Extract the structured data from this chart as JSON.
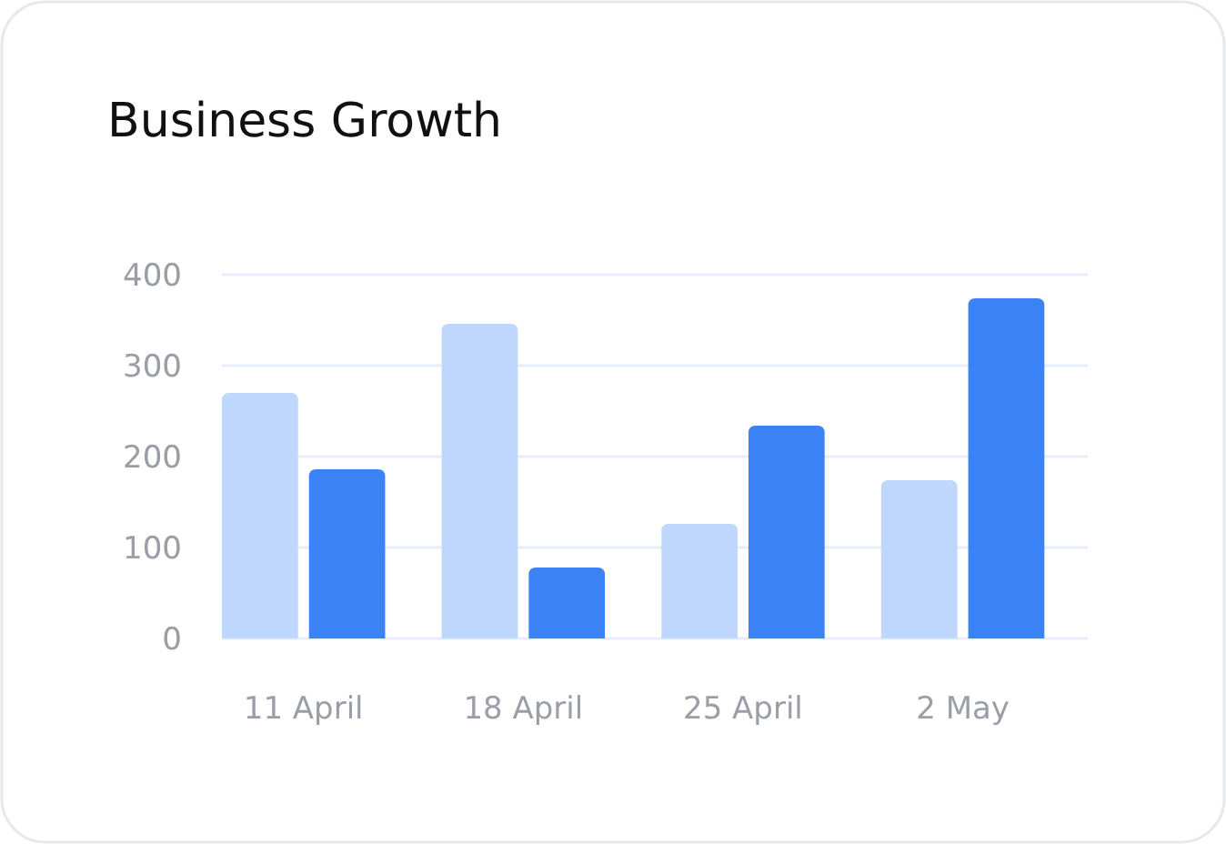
{
  "chart_data": {
    "type": "bar",
    "title": "Business Growth",
    "categories": [
      "11 April",
      "18 April",
      "25 April",
      "2 May"
    ],
    "series": [
      {
        "color": "#bfd7fd",
        "values": [
          270,
          346,
          126,
          174
        ]
      },
      {
        "color": "#3b82f6",
        "values": [
          186,
          78,
          234,
          374
        ]
      }
    ],
    "ylim": [
      0,
      400
    ],
    "yticks": [
      0,
      100,
      200,
      300,
      400
    ],
    "grid": "y"
  }
}
